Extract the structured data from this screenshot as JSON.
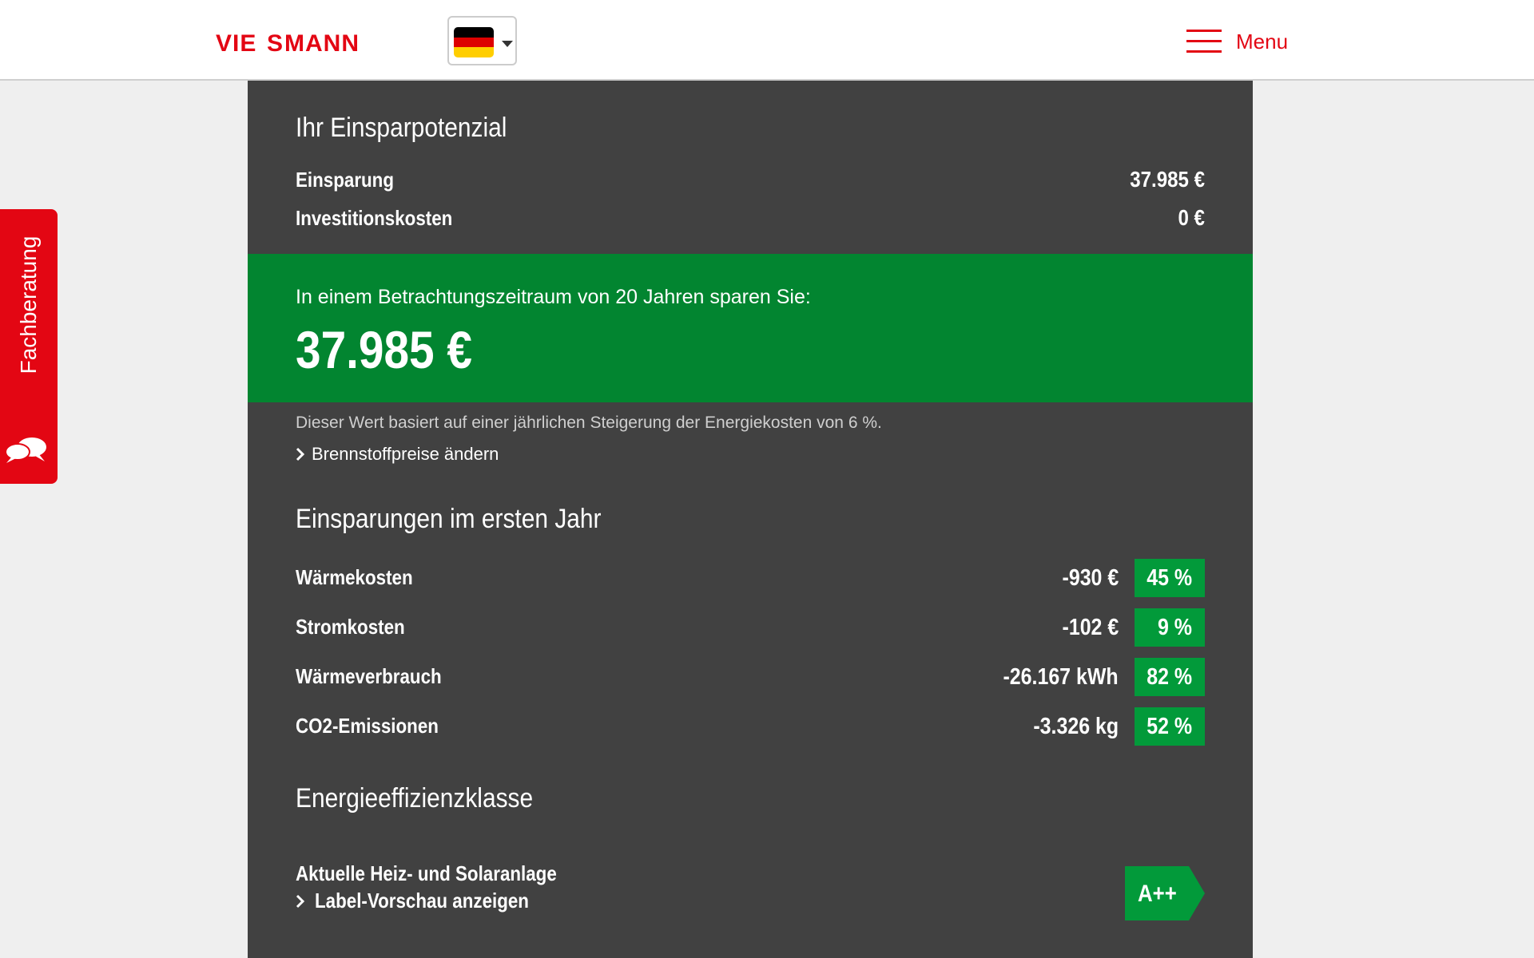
{
  "header": {
    "logo_text": "VIESSMANN",
    "language_flag": "de-flag-icon",
    "menu_label": "Menu"
  },
  "side_tab": {
    "label": "Fachberatung",
    "icon": "chat-bubbles-icon"
  },
  "potential": {
    "title": "Ihr Einsparpotenzial",
    "rows": [
      {
        "label": "Einsparung",
        "value": "37.985 €"
      },
      {
        "label": "Investitionskosten",
        "value": "0 €"
      }
    ]
  },
  "highlight": {
    "subtitle": "In einem Betrachtungszeitraum von 20 Jahren sparen Sie:",
    "amount": "37.985 €"
  },
  "note": "Dieser Wert basiert auf einer jährlichen Steigerung der Energiekosten von 6 %.",
  "fuel_link": "Brennstoffpreise ändern",
  "first_year": {
    "title": "Einsparungen im ersten Jahr",
    "rows": [
      {
        "label": "Wärmekosten",
        "value": "-930 €",
        "percent": "45 %"
      },
      {
        "label": "Stromkosten",
        "value": "-102 €",
        "percent": "9 %"
      },
      {
        "label": "Wärmeverbrauch",
        "value": "-26.167 kWh",
        "percent": "82 %"
      },
      {
        "label": "CO2-Emissionen",
        "value": "-3.326 kg",
        "percent": "52 %"
      }
    ]
  },
  "efficiency": {
    "title": "Energieeffizienzklasse",
    "label": "Aktuelle Heiz- und Solaranlage",
    "preview_link": "Label-Vorschau anzeigen",
    "class": "A++"
  },
  "colors": {
    "brand_red": "#e30613",
    "panel_bg": "#414141",
    "highlight_green": "#028530",
    "badge_green": "#029a3a"
  }
}
